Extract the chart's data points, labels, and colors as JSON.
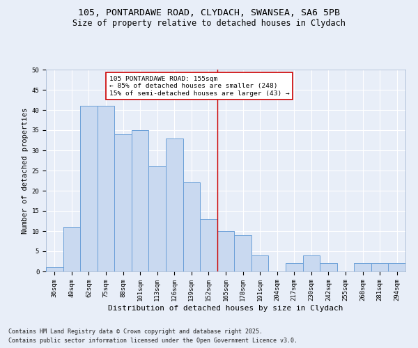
{
  "title1": "105, PONTARDAWE ROAD, CLYDACH, SWANSEA, SA6 5PB",
  "title2": "Size of property relative to detached houses in Clydach",
  "xlabel": "Distribution of detached houses by size in Clydach",
  "ylabel": "Number of detached properties",
  "categories": [
    "36sqm",
    "49sqm",
    "62sqm",
    "75sqm",
    "88sqm",
    "101sqm",
    "113sqm",
    "126sqm",
    "139sqm",
    "152sqm",
    "165sqm",
    "178sqm",
    "191sqm",
    "204sqm",
    "217sqm",
    "230sqm",
    "242sqm",
    "255sqm",
    "268sqm",
    "281sqm",
    "294sqm"
  ],
  "values": [
    1,
    11,
    41,
    41,
    34,
    35,
    26,
    33,
    22,
    13,
    10,
    9,
    4,
    0,
    2,
    4,
    2,
    0,
    2,
    2,
    2
  ],
  "bar_color": "#c9d9f0",
  "bar_edge_color": "#6a9fd8",
  "bar_edge_width": 0.7,
  "vline_x_index": 9.5,
  "vline_color": "#cc0000",
  "annotation_line1": "105 PONTARDAWE ROAD: 155sqm",
  "annotation_line2": "← 85% of detached houses are smaller (248)",
  "annotation_line3": "15% of semi-detached houses are larger (43) →",
  "annotation_box_color": "#ffffff",
  "annotation_box_edge_color": "#cc0000",
  "ylim": [
    0,
    50
  ],
  "yticks": [
    0,
    5,
    10,
    15,
    20,
    25,
    30,
    35,
    40,
    45,
    50
  ],
  "bg_color": "#e8eef8",
  "plot_bg_color": "#e8eef8",
  "grid_color": "#ffffff",
  "footer1": "Contains HM Land Registry data © Crown copyright and database right 2025.",
  "footer2": "Contains public sector information licensed under the Open Government Licence v3.0.",
  "title_fontsize": 9.5,
  "subtitle_fontsize": 8.5,
  "tick_fontsize": 6.5,
  "ylabel_fontsize": 7.5,
  "xlabel_fontsize": 8,
  "annotation_fontsize": 6.8,
  "footer_fontsize": 6
}
